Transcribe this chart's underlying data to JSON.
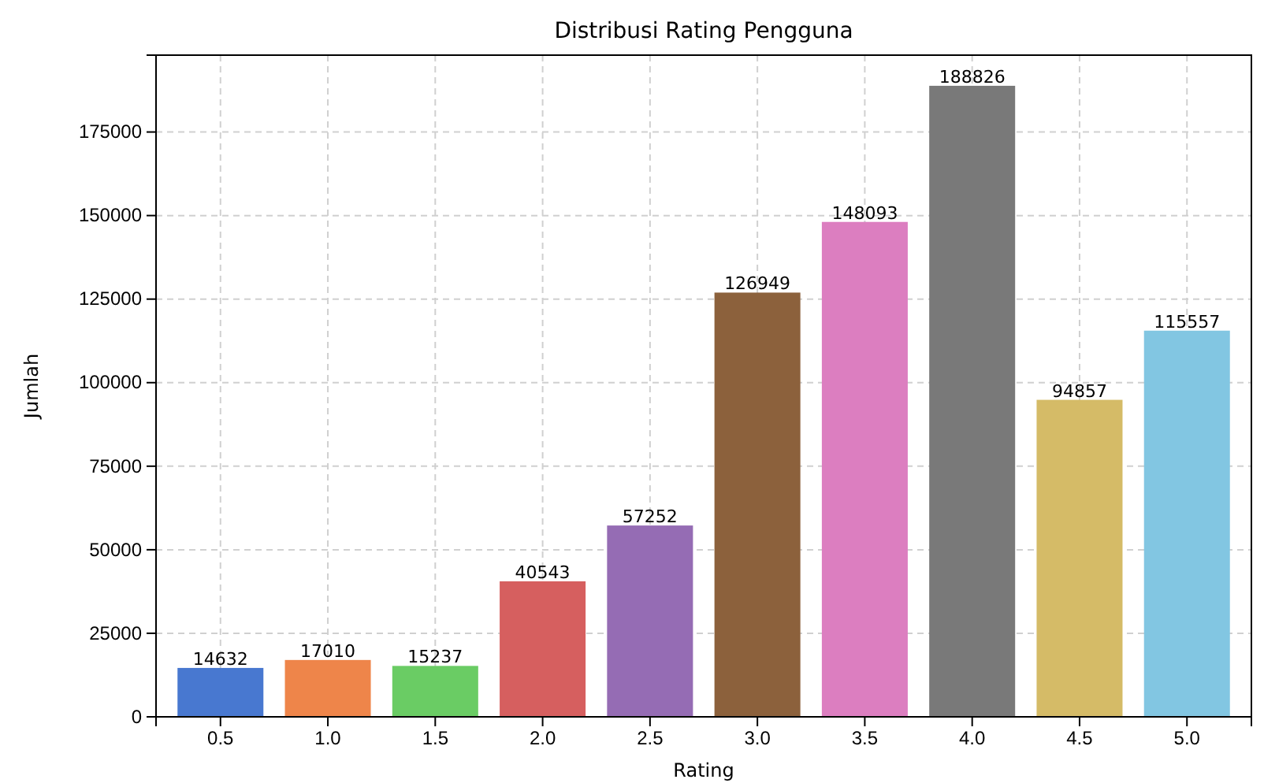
{
  "chart_data": {
    "type": "bar",
    "title": "Distribusi Rating Pengguna",
    "xlabel": "Rating",
    "ylabel": "Jumlah",
    "categories": [
      "0.5",
      "1.0",
      "1.5",
      "2.0",
      "2.5",
      "3.0",
      "3.5",
      "4.0",
      "4.5",
      "5.0"
    ],
    "values": [
      14632,
      17010,
      15237,
      40543,
      57252,
      126949,
      148093,
      188826,
      94857,
      115557
    ],
    "colors": [
      "#4878d0",
      "#ee854a",
      "#6acc64",
      "#d65f5f",
      "#956cb4",
      "#8c613c",
      "#dc7ec0",
      "#797979",
      "#d5bb67",
      "#82c6e2"
    ],
    "ylim": [
      0,
      198000
    ],
    "yticks": [
      0,
      25000,
      50000,
      75000,
      100000,
      125000,
      150000,
      175000
    ],
    "grid": true,
    "data_labels": true
  }
}
